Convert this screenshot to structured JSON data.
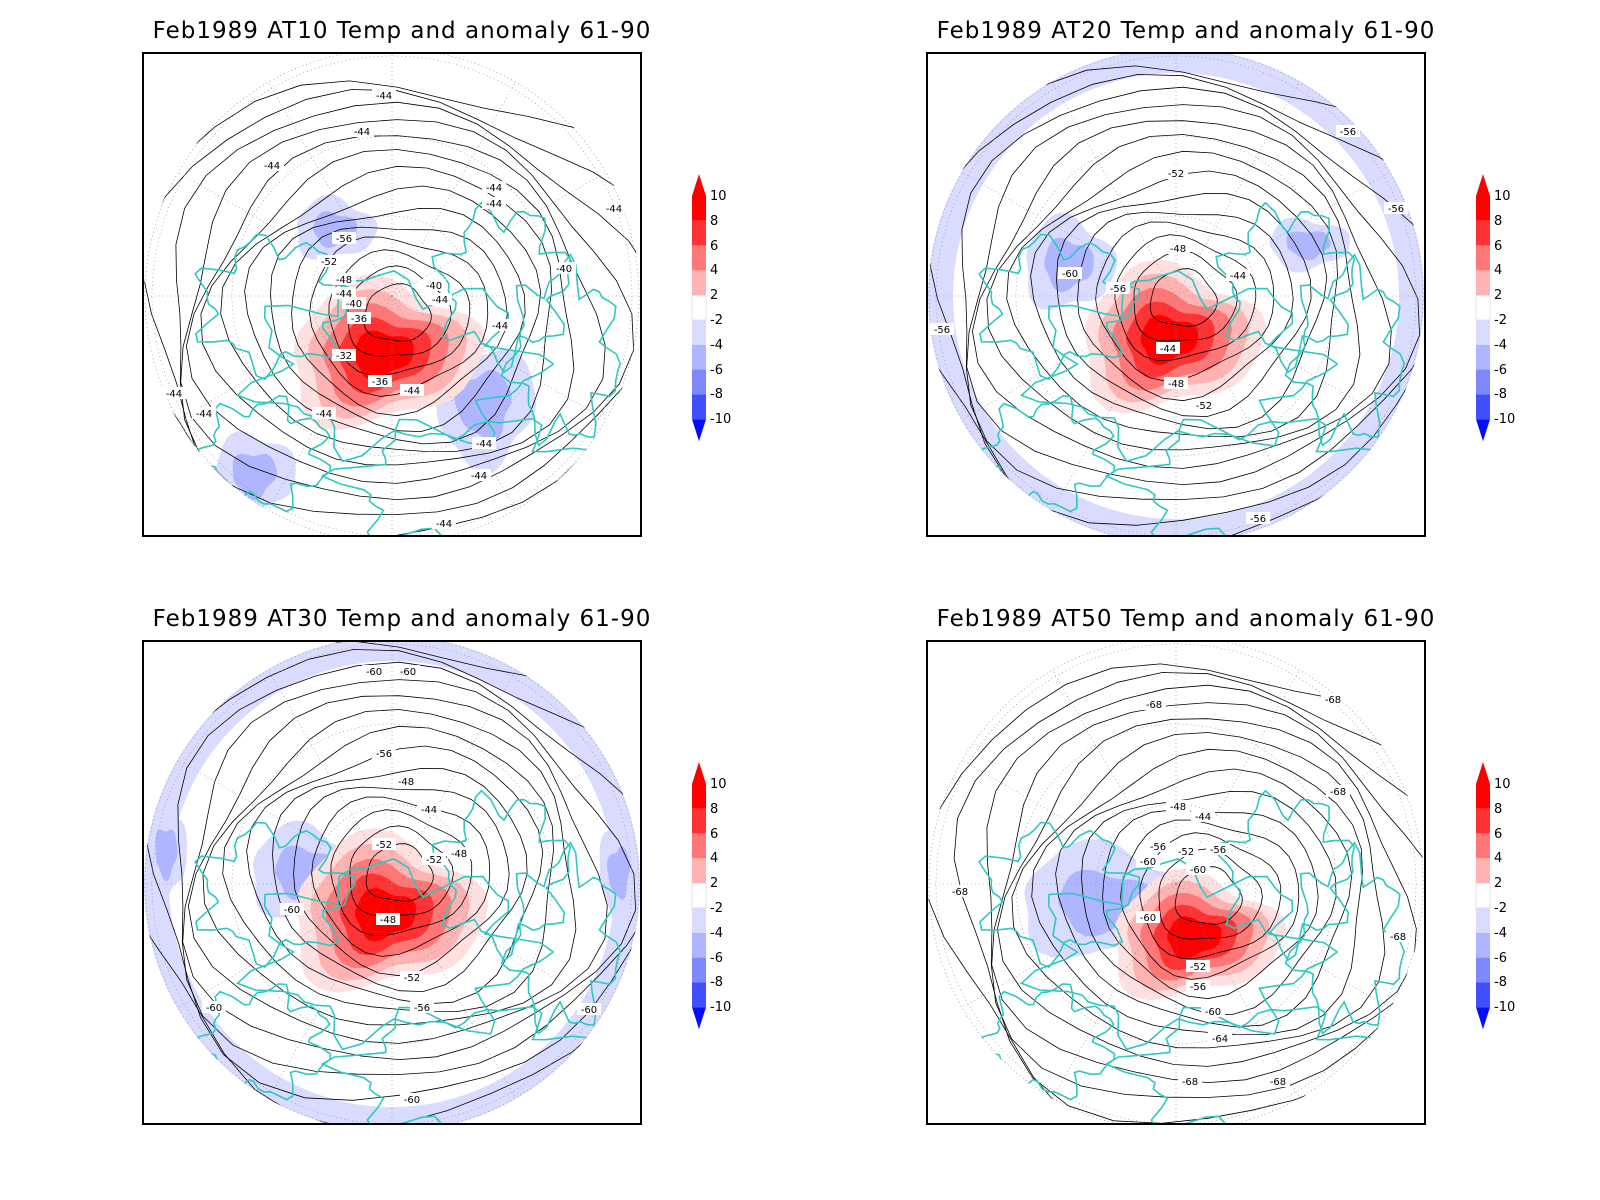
{
  "panels": [
    {
      "title": "Feb1989 AT10 Temp and anomaly 61-90",
      "contour_labels": [
        "-44",
        "-44",
        "-44",
        "-44",
        "-44",
        "-56",
        "-52",
        "-48",
        "-44",
        "-40",
        "-36",
        "-40",
        "-44",
        "-32",
        "-36",
        "-44",
        "-44",
        "-44",
        "-44",
        "-44",
        "-44",
        "-44",
        "-44",
        "-44",
        "-40"
      ]
    },
    {
      "title": "Feb1989 AT20 Temp and anomaly 61-90",
      "contour_labels": [
        "-56",
        "-52",
        "-60",
        "-56",
        "-56",
        "-48",
        "-44",
        "-44",
        "-48",
        "-52",
        "-56",
        "-56"
      ]
    },
    {
      "title": "Feb1989 AT30 Temp and anomaly 61-90",
      "contour_labels": [
        "-60",
        "-60",
        "-56",
        "-48",
        "-44",
        "-52",
        "-52",
        "-48",
        "-60",
        "-48",
        "-52",
        "-56",
        "-60",
        "-60",
        "-60"
      ]
    },
    {
      "title": "Feb1989 AT50 Temp and anomaly 61-90",
      "contour_labels": [
        "-68",
        "-68",
        "-68",
        "-48",
        "-44",
        "-56",
        "-52",
        "-56",
        "-60",
        "-60",
        "-60",
        "-68",
        "-68",
        "-52",
        "-56",
        "-60",
        "-64",
        "-68",
        "-68"
      ]
    }
  ],
  "colorbar": {
    "levels": [
      "10",
      "8",
      "6",
      "4",
      "2",
      "-2",
      "-4",
      "-6",
      "-8",
      "-10"
    ],
    "colors": [
      "#ff0000",
      "#ff3333",
      "#ff7777",
      "#ffb3b3",
      "#ffffff",
      "#d9dcff",
      "#b0b5ff",
      "#8088ff",
      "#4050ff",
      "#0010ff"
    ]
  },
  "colors": {
    "coastline": "#2ec8c0",
    "contour": "#000000",
    "warm_anomaly": "#ff0000",
    "cold_anomaly": "#8088ff"
  }
}
